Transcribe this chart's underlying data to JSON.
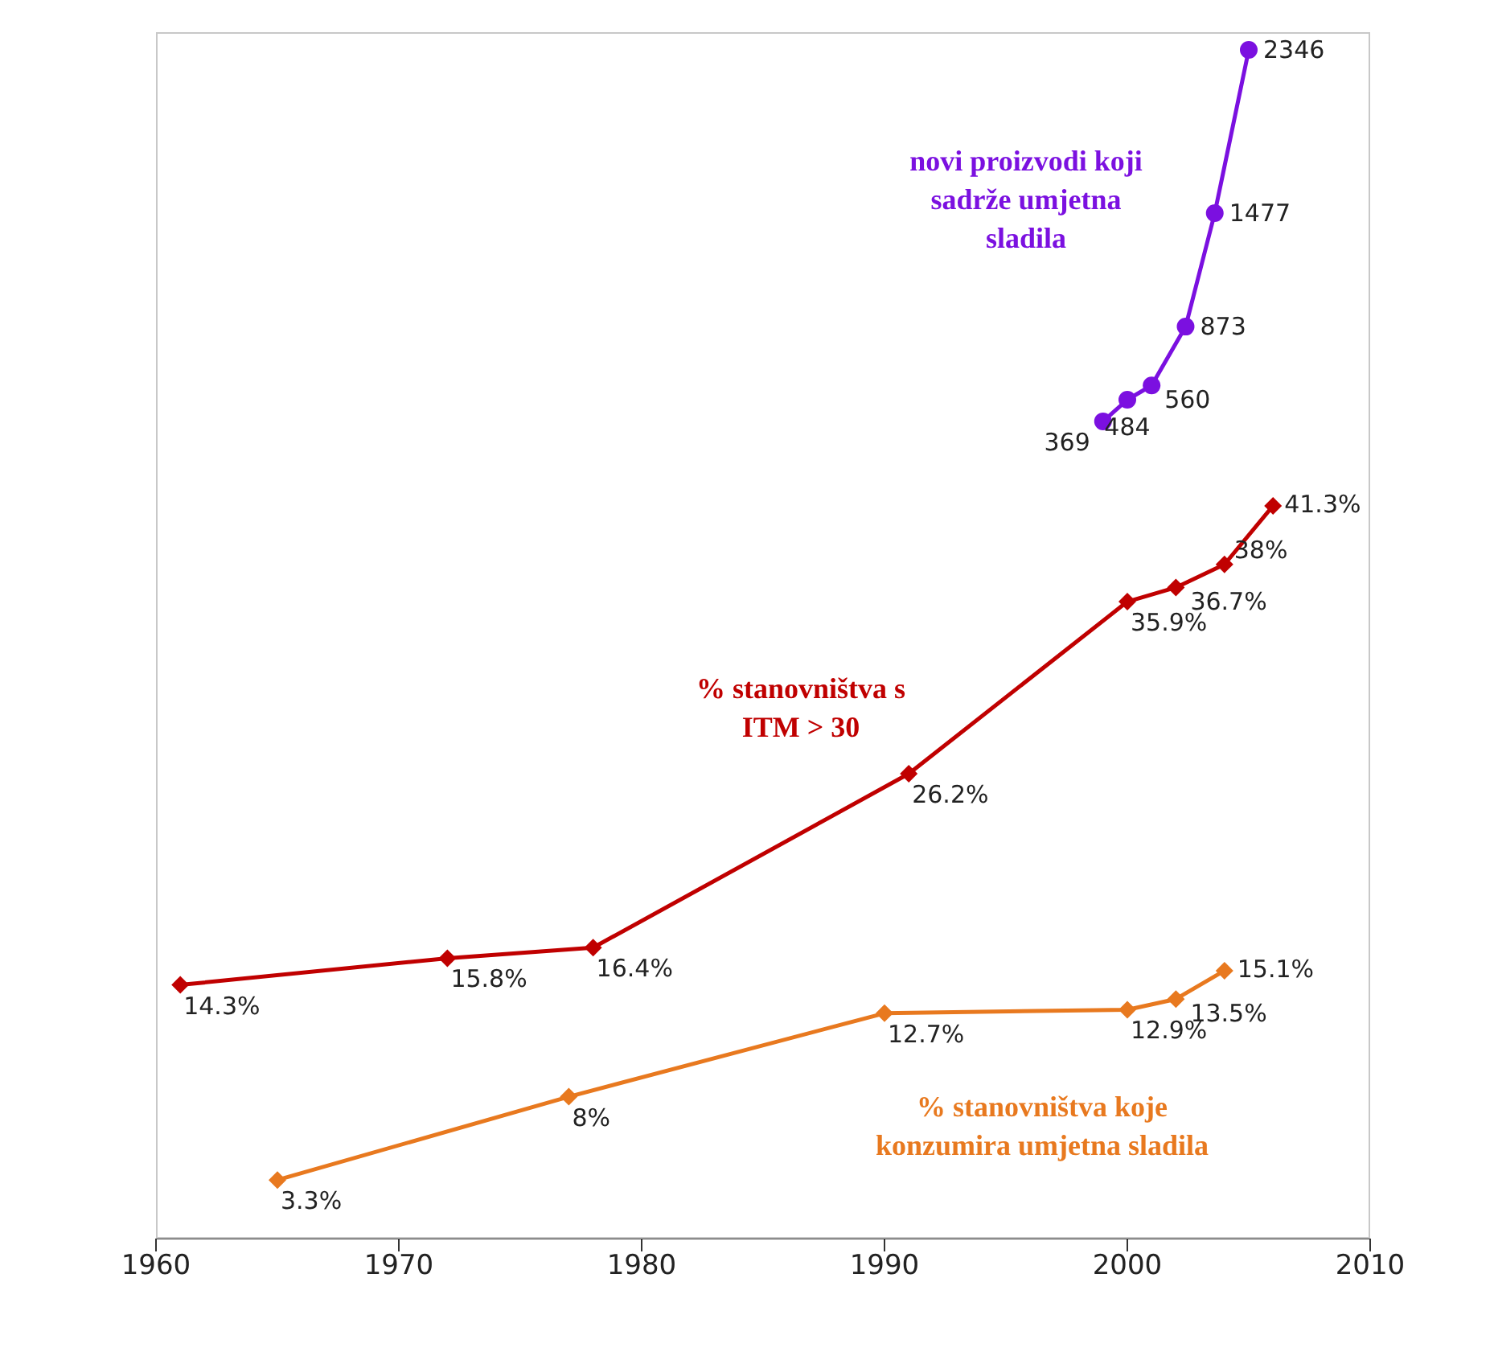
{
  "chart_data": {
    "type": "line",
    "xlim": [
      1960,
      2010
    ],
    "xticks": [
      1960,
      1970,
      1980,
      1990,
      2000,
      2010
    ],
    "ylim": [
      0,
      68
    ],
    "y2lim": [
      -3980,
      2440
    ],
    "tick_labels": "x",
    "line_style": "solid",
    "series": [
      {
        "name": "novi proizvodi koji sadrže umjetna sladila",
        "color": "#7b10e0",
        "axis": "y2",
        "marker": "circle",
        "x": [
          1999,
          2000,
          2001,
          2002.4,
          2003.6,
          2005
        ],
        "values": [
          369,
          484,
          560,
          873,
          1477,
          2346
        ],
        "value_labels": [
          "369",
          "484",
          "560",
          "873",
          "1477",
          "2346"
        ]
      },
      {
        "name": "% stanovništva s ITM > 30",
        "color": "#c00000",
        "axis": "y",
        "marker": "diamond",
        "x": [
          1961,
          1972,
          1978,
          1991,
          2000,
          2002,
          2004,
          2006
        ],
        "values": [
          14.3,
          15.8,
          16.4,
          26.2,
          35.9,
          36.7,
          38,
          41.3
        ],
        "value_labels": [
          "14.3%",
          "15.8%",
          "16.4%",
          "26.2%",
          "35.9%",
          "36.7%",
          "38%",
          "41.3%"
        ]
      },
      {
        "name": "% stanovništva koje konzumira umjetna sladila",
        "color": "#e8791f",
        "axis": "y",
        "marker": "diamond",
        "x": [
          1965,
          1977,
          1990,
          2000,
          2002,
          2004
        ],
        "values": [
          3.3,
          8,
          12.7,
          12.9,
          13.5,
          15.1
        ],
        "value_labels": [
          "3.3%",
          "8%",
          "12.7%",
          "12.9%",
          "13.5%",
          "15.1%"
        ]
      }
    ]
  }
}
